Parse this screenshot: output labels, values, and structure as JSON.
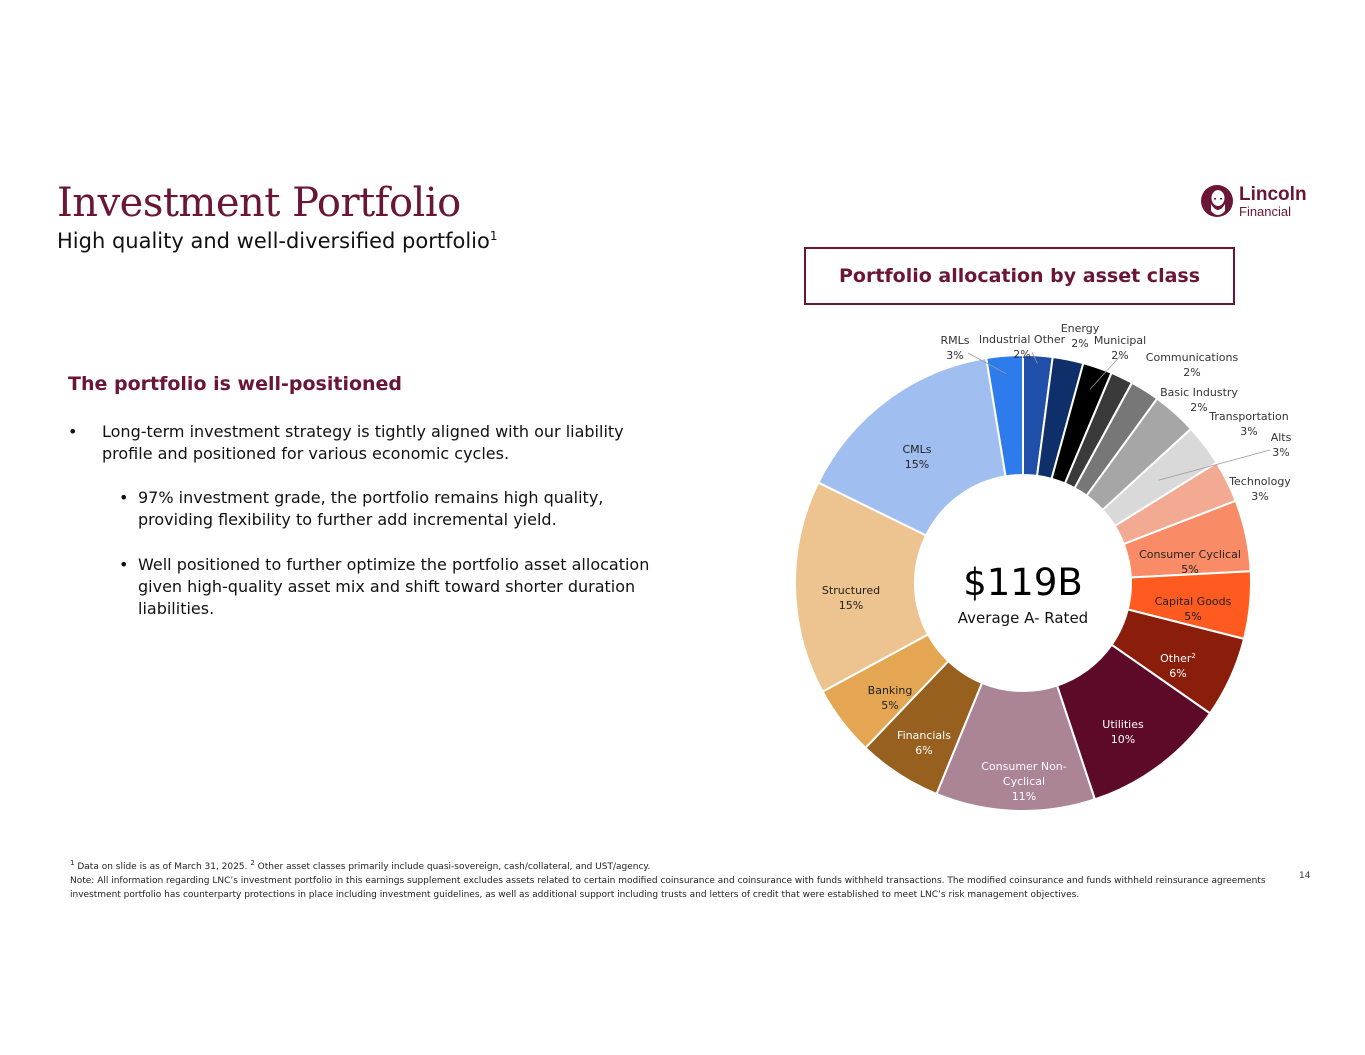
{
  "header": {
    "title": "Investment Portfolio",
    "subtitle": "High quality and well-diversified portfolio",
    "subtitle_sup": "1"
  },
  "logo": {
    "line1": "Lincoln",
    "line2": "Financial"
  },
  "left": {
    "heading": "The portfolio is well-positioned",
    "bullet1": "Long-term investment strategy is tightly aligned with our liability profile and positioned for various economic cycles.",
    "subbullet1": "97% investment grade, the portfolio remains high quality, providing flexibility to further add incremental yield.",
    "subbullet2": "Well positioned to further optimize the portfolio asset allocation given high-quality asset mix and shift toward shorter duration liabilities."
  },
  "chart_title": "Portfolio allocation by asset class",
  "center": {
    "value": "$119B",
    "label": "Average A- Rated"
  },
  "chart_data": {
    "type": "pie",
    "donut": true,
    "title": "Portfolio allocation by asset class",
    "slices": [
      {
        "label": "Industrial Other",
        "value_label": "2%",
        "value": 2.1,
        "color": "#1f4fa8"
      },
      {
        "label": "Energy",
        "value_label": "2%",
        "value": 2.2,
        "color": "#0f2f6b"
      },
      {
        "label": "Municipal",
        "value_label": "2%",
        "value": 2.1,
        "color": "#000000"
      },
      {
        "label": "Communications",
        "value_label": "2%",
        "value": 1.6,
        "color": "#3a3a3a"
      },
      {
        "label": "Basic Industry",
        "value_label": "2%",
        "value": 2.1,
        "color": "#777777"
      },
      {
        "label": "Transportation",
        "value_label": "3%",
        "value": 3.2,
        "color": "#a6a6a6"
      },
      {
        "label": "Alts",
        "value_label": "3%",
        "value": 3.0,
        "color": "#d9d9d9"
      },
      {
        "label": "Technology",
        "value_label": "3%",
        "value": 3.0,
        "color": "#f2ab92"
      },
      {
        "label": "Consumer Cyclical",
        "value_label": "5%",
        "value": 5.1,
        "color": "#f98b66"
      },
      {
        "label": "Capital Goods",
        "value_label": "5%",
        "value": 4.8,
        "color": "#ff5a1f"
      },
      {
        "label": "Other",
        "label_sup": "2",
        "value_label": "6%",
        "value": 5.8,
        "color": "#8b1e0b"
      },
      {
        "label": "Utilities",
        "value_label": "10%",
        "value": 10.3,
        "color": "#5c0a28"
      },
      {
        "label": "Consumer Non-Cyclical",
        "value_label": "11%",
        "value": 11.4,
        "color": "#ab8496"
      },
      {
        "label": "Financials",
        "value_label": "6%",
        "value": 6.0,
        "color": "#97601e"
      },
      {
        "label": "Banking",
        "value_label": "5%",
        "value": 5.0,
        "color": "#e5a653"
      },
      {
        "label": "Structured",
        "value_label": "15%",
        "value": 15.3,
        "color": "#edc48f"
      },
      {
        "label": "CMLs",
        "value_label": "15%",
        "value": 15.3,
        "color": "#a0bff0"
      },
      {
        "label": "RMLs",
        "value_label": "3%",
        "value": 2.6,
        "color": "#2e7cec"
      }
    ]
  },
  "footnotes": {
    "line1_sup1": "1",
    "line1_a": "Data on slide is as of March 31, 2025.",
    "line1_sup2": "2",
    "line1_b": "Other asset classes primarily include quasi-sovereign, cash/collateral, and UST/agency.",
    "note": "Note: All information regarding LNC’s investment portfolio in this earnings supplement excludes assets related to certain modified coinsurance and coinsurance with funds withheld transactions. The modified coinsurance and funds withheld reinsurance agreements investment portfolio has counterparty protections in place including investment guidelines, as well as additional support including trusts and letters of credit that were established to meet LNC’s risk management objectives."
  },
  "page_number": "14"
}
